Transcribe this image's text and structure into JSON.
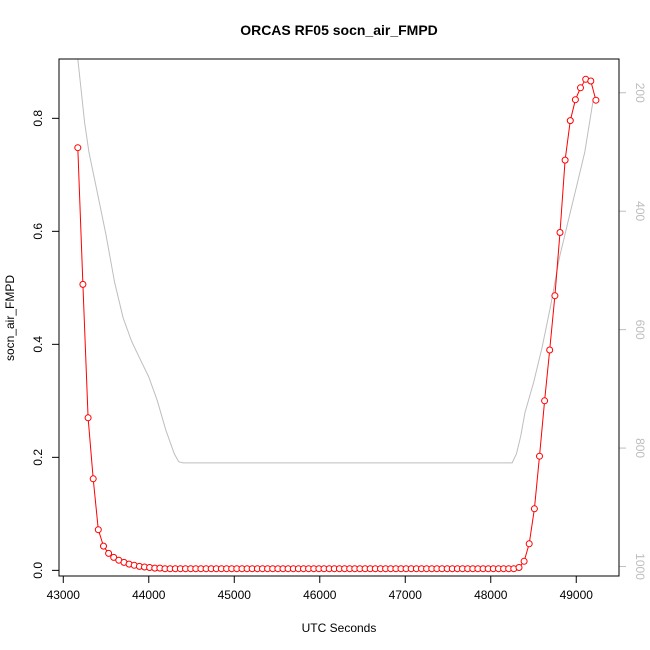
{
  "chart_data": {
    "type": "line",
    "title": "ORCAS RF05 socn_air_FMPD",
    "xlabel": "UTC Seconds",
    "ylabel": "socn_air_FMPD",
    "xlim": [
      42950,
      49500
    ],
    "ylim": [
      -0.01,
      0.905
    ],
    "y2lim": [
      1016,
      143
    ],
    "x_ticks": [
      43000,
      44000,
      45000,
      46000,
      47000,
      48000,
      49000
    ],
    "y_ticks": [
      0.0,
      0.2,
      0.4,
      0.6,
      0.8
    ],
    "y2_ticks": [
      200,
      400,
      600,
      800,
      1000
    ],
    "colors": {
      "primary": "#ff0000",
      "secondary": "#bebebe"
    },
    "series": [
      {
        "type": "line+points",
        "color": "#ff0000",
        "x": [
          43170,
          43230,
          43290,
          43350,
          43410,
          43470,
          43530,
          43590,
          43650,
          43710,
          43770,
          43830,
          43890,
          43950,
          44010,
          44070,
          44130,
          44190,
          44250,
          44310,
          44370,
          44430,
          44490,
          44550,
          44610,
          44670,
          44730,
          44790,
          44850,
          44910,
          44970,
          45030,
          45090,
          45150,
          45210,
          45270,
          45330,
          45390,
          45450,
          45510,
          45570,
          45630,
          45690,
          45750,
          45810,
          45870,
          45930,
          45990,
          46050,
          46110,
          46170,
          46230,
          46290,
          46350,
          46410,
          46470,
          46530,
          46590,
          46650,
          46710,
          46770,
          46830,
          46890,
          46950,
          47010,
          47070,
          47130,
          47190,
          47250,
          47310,
          47370,
          47430,
          47490,
          47550,
          47610,
          47670,
          47730,
          47790,
          47850,
          47910,
          47970,
          48030,
          48090,
          48150,
          48210,
          48270,
          48330,
          48390,
          48450,
          48510,
          48570,
          48630,
          48690,
          48750,
          48810,
          48870,
          48930,
          48990,
          49050,
          49110,
          49170,
          49230
        ],
        "y": [
          0.748,
          0.506,
          0.27,
          0.162,
          0.072,
          0.043,
          0.03,
          0.023,
          0.018,
          0.014,
          0.011,
          0.009,
          0.007,
          0.006,
          0.005,
          0.004,
          0.004,
          0.003,
          0.003,
          0.003,
          0.003,
          0.003,
          0.003,
          0.003,
          0.003,
          0.003,
          0.003,
          0.003,
          0.003,
          0.003,
          0.003,
          0.003,
          0.003,
          0.003,
          0.003,
          0.003,
          0.003,
          0.003,
          0.003,
          0.003,
          0.003,
          0.003,
          0.003,
          0.003,
          0.003,
          0.003,
          0.003,
          0.003,
          0.003,
          0.003,
          0.003,
          0.003,
          0.003,
          0.003,
          0.003,
          0.003,
          0.003,
          0.003,
          0.003,
          0.003,
          0.003,
          0.003,
          0.003,
          0.003,
          0.003,
          0.003,
          0.003,
          0.003,
          0.003,
          0.003,
          0.003,
          0.003,
          0.003,
          0.003,
          0.003,
          0.003,
          0.003,
          0.003,
          0.003,
          0.003,
          0.003,
          0.003,
          0.003,
          0.003,
          0.003,
          0.003,
          0.005,
          0.016,
          0.047,
          0.109,
          0.202,
          0.3,
          0.39,
          0.486,
          0.598,
          0.726,
          0.796,
          0.833,
          0.854,
          0.869,
          0.866,
          0.832
        ]
      },
      {
        "type": "line",
        "axis": "right",
        "color": "#bebebe",
        "x": [
          43170,
          43250,
          43300,
          43400,
          43500,
          43600,
          43700,
          43800,
          43900,
          44000,
          44100,
          44200,
          44300,
          44350,
          44400,
          45000,
          46000,
          47000,
          48000,
          48250,
          48300,
          48350,
          48400,
          48500,
          48600,
          48700,
          48800,
          48900,
          49000,
          49100,
          49200
        ],
        "y": [
          143,
          250,
          300,
          370,
          440,
          520,
          580,
          620,
          650,
          680,
          720,
          770,
          810,
          823,
          825,
          825,
          825,
          825,
          825,
          825,
          810,
          780,
          740,
          690,
          630,
          560,
          480,
          420,
          360,
          300,
          210
        ]
      }
    ]
  }
}
